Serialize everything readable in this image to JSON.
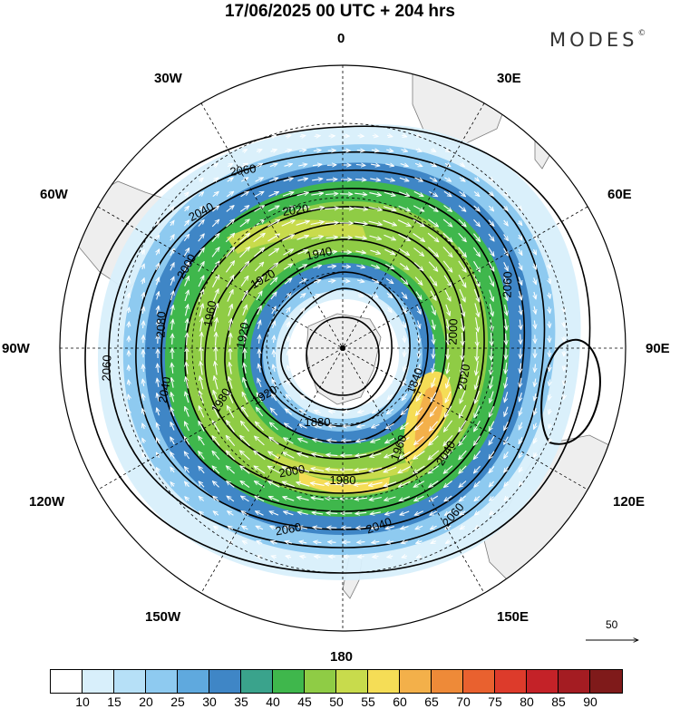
{
  "title": "17/06/2025  00 UTC  + 204 hrs",
  "brand": {
    "name": "MODES",
    "mark": "©"
  },
  "longitude_labels": {
    "north": "0",
    "n30e": "30E",
    "n60e": "60E",
    "east": "90E",
    "s120e": "120E",
    "s150e": "150E",
    "south": "180",
    "s150w": "150W",
    "s120w": "120W",
    "west": "90W",
    "n60w": "60W",
    "n30w": "30W"
  },
  "contour_labels": [
    "2060",
    "2040",
    "2020",
    "1940",
    "2000",
    "1920",
    "1960",
    "1920",
    "2080",
    "2060",
    "2040",
    "1980",
    "1920",
    "1880",
    "1840",
    "2000",
    "2020",
    "2060",
    "1960",
    "2040",
    "2060",
    "2000",
    "1980",
    "2040",
    "2060"
  ],
  "reference_vector": {
    "value": "50"
  },
  "colorbar": {
    "ticks": [
      "10",
      "15",
      "20",
      "25",
      "30",
      "35",
      "40",
      "45",
      "50",
      "55",
      "60",
      "65",
      "70",
      "75",
      "80",
      "85",
      "90"
    ],
    "colors": [
      "#ffffff",
      "#d8effb",
      "#b6e0f7",
      "#8ecaf0",
      "#5fa9de",
      "#3f86c6",
      "#3aa38c",
      "#3fb74c",
      "#8fcc45",
      "#c8db4c",
      "#f5dd56",
      "#f3b04a",
      "#ee8a38",
      "#e9612f",
      "#dd3b2b",
      "#c42228",
      "#a41c22",
      "#7f1a1a"
    ]
  },
  "map_colors": {
    "land": "#eeeeee",
    "coast": "#7a7a7a",
    "contour": "#000000",
    "vector": "#ffffff"
  }
}
